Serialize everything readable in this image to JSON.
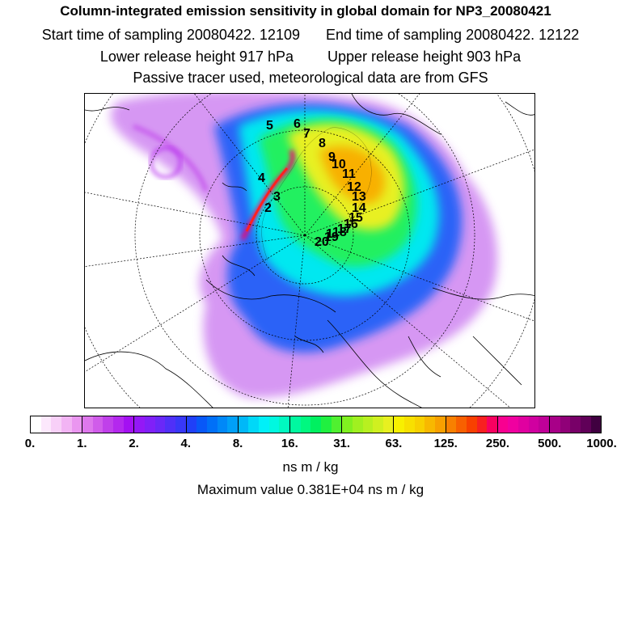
{
  "header": {
    "title": "Column-integrated emission sensitivity in global domain for NP3_20080421",
    "start_time": "Start time of sampling 20080422. 12109",
    "end_time": "End time of sampling 20080422. 12122",
    "lower_release": "Lower release height  917 hPa",
    "upper_release": "Upper release height  903 hPa",
    "tracer_note": "Passive tracer used, meteorological data are from GFS"
  },
  "map": {
    "track_labels": [
      "1",
      "2",
      "3",
      "4",
      "5",
      "6",
      "7",
      "8",
      "9",
      "10",
      "11",
      "12",
      "13",
      "14",
      "15",
      "16",
      "17",
      "18",
      "19",
      "20"
    ]
  },
  "colorbar": {
    "tick_labels": [
      "0.",
      "1.",
      "2.",
      "4.",
      "8.",
      "16.",
      "31.",
      "63.",
      "125.",
      "250.",
      "500.",
      "1000."
    ],
    "unit": "ns m / kg",
    "colors": [
      "#ffffff",
      "#fce8fc",
      "#f8d0f8",
      "#f2b4f4",
      "#ea96f0",
      "#de78ec",
      "#d05cea",
      "#c040ea",
      "#b428ee",
      "#a410f2",
      "#9418f6",
      "#8020f8",
      "#6a28f8",
      "#5030f8",
      "#3838f8",
      "#2040f8",
      "#0858f8",
      "#0070f8",
      "#0088f8",
      "#00a0f8",
      "#00b8f8",
      "#00d8f8",
      "#00f0f8",
      "#00f8e0",
      "#00f8c0",
      "#00f8a0",
      "#00f880",
      "#00f060",
      "#20f040",
      "#50f030",
      "#80f020",
      "#a0f020",
      "#b8f020",
      "#d0f020",
      "#e8f020",
      "#f8f000",
      "#f8e000",
      "#f8d000",
      "#f8b800",
      "#f8a000",
      "#f88000",
      "#f86000",
      "#f84000",
      "#f82020",
      "#f80060",
      "#f80090",
      "#f000a0",
      "#e000a0",
      "#d000a0",
      "#c00098",
      "#a80088",
      "#900078",
      "#780068",
      "#600058",
      "#400040"
    ]
  },
  "max_value": "Maximum value  0.381E+04 ns m / kg"
}
